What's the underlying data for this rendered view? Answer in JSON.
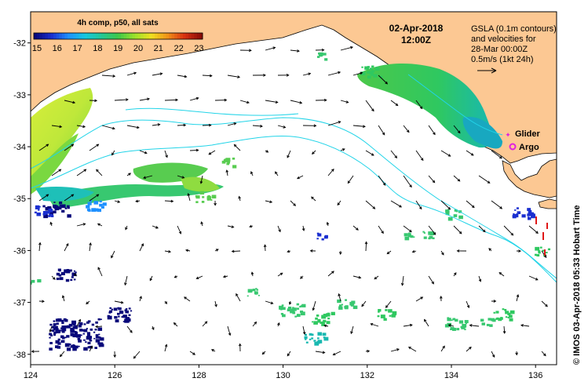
{
  "colorbar": {
    "title": "4h comp, p50, all sats",
    "ticks": [
      "15",
      "16",
      "17",
      "18",
      "19",
      "20",
      "21",
      "22",
      "23"
    ],
    "colors": [
      "#08087a",
      "#1a2fd0",
      "#1e90ff",
      "#17c8e0",
      "#22c896",
      "#3dc84a",
      "#9be22a",
      "#f0e020",
      "#f09018",
      "#d83010",
      "#8a0c08"
    ]
  },
  "timestamp": {
    "date": "02-Apr-2018",
    "time": "12:00Z"
  },
  "info": {
    "line1": "GSLA (0.1m contours)",
    "line2": "and velocities for",
    "line3": "28-Mar 00:00Z",
    "line4": "0.5m/s (1kt 24h)"
  },
  "legend": {
    "glider_label": "Glider",
    "argo_label": "Argo",
    "glider_color": "#e020e0",
    "argo_color": "#e020e0"
  },
  "axes": {
    "x_ticks": [
      "124",
      "126",
      "128",
      "130",
      "132",
      "134",
      "136"
    ],
    "y_ticks": [
      "-32",
      "-33",
      "-34",
      "-35",
      "-36",
      "-37",
      "-38"
    ],
    "x_values": [
      124,
      126,
      128,
      130,
      132,
      134,
      136
    ],
    "y_values": [
      -32,
      -33,
      -34,
      -35,
      -36,
      -37,
      -38
    ],
    "lon_range": [
      124,
      136.5
    ],
    "lat_range": [
      -38.2,
      -31.4
    ]
  },
  "credit": "© IMOS 03-Apr-2018 05:33 Hobart Time",
  "colors": {
    "land": "#fcc893",
    "sea": "#ffffff",
    "contour": "#22d4e8",
    "arrow": "#000000"
  }
}
